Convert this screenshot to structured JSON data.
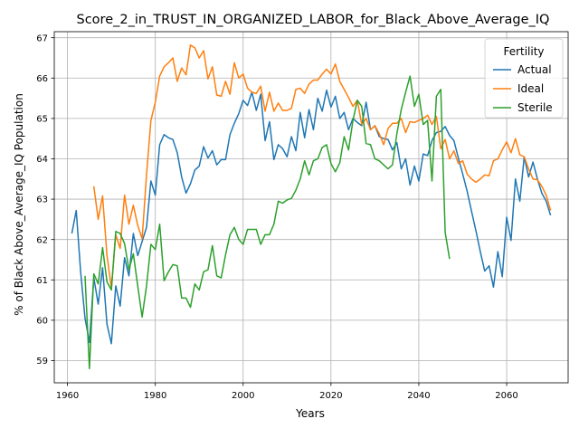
{
  "chart_data": {
    "type": "line",
    "title": "Score_2_in_TRUST_IN_ORGANIZED_LABOR_for_Black_Above_Average_IQ",
    "xlabel": "Years",
    "ylabel": "% of Black Above_Average_IQ Population",
    "xlim": [
      1957,
      2074
    ],
    "ylim": [
      58.45,
      67.15
    ],
    "xticks": [
      1960,
      1980,
      2000,
      2020,
      2040,
      2060
    ],
    "yticks": [
      59,
      60,
      61,
      62,
      63,
      64,
      65,
      66,
      67
    ],
    "grid": true,
    "legend": {
      "title": "Fertility",
      "position": "top-right"
    },
    "series": [
      {
        "name": "Actual",
        "color": "#1f77b4",
        "x": [
          1961,
          1962,
          1963,
          1964,
          1965,
          1966,
          1967,
          1968,
          1969,
          1970,
          1971,
          1972,
          1973,
          1974,
          1975,
          1976,
          1977,
          1978,
          1979,
          1980,
          1981,
          1982,
          1983,
          1984,
          1985,
          1986,
          1987,
          1988,
          1989,
          1990,
          1991,
          1992,
          1993,
          1994,
          1995,
          1996,
          1997,
          1998,
          1999,
          2000,
          2001,
          2002,
          2003,
          2004,
          2005,
          2006,
          2007,
          2008,
          2009,
          2010,
          2011,
          2012,
          2013,
          2014,
          2015,
          2016,
          2017,
          2018,
          2019,
          2020,
          2021,
          2022,
          2023,
          2024,
          2025,
          2026,
          2027,
          2028,
          2029,
          2030,
          2031,
          2032,
          2033,
          2034,
          2035,
          2036,
          2037,
          2038,
          2039,
          2040,
          2041,
          2042,
          2043,
          2044,
          2045,
          2046,
          2047,
          2048,
          2049,
          2050,
          2051,
          2052,
          2053,
          2054,
          2055,
          2056,
          2057,
          2058,
          2059,
          2060,
          2061,
          2062,
          2063,
          2064,
          2065,
          2066,
          2067,
          2068,
          2069,
          2070
        ],
        "y": [
          62.15,
          62.72,
          61.2,
          60.05,
          59.45,
          61.05,
          60.4,
          61.3,
          59.9,
          59.42,
          60.85,
          60.35,
          61.55,
          61.1,
          62.15,
          61.6,
          61.95,
          62.3,
          63.45,
          63.1,
          64.35,
          64.6,
          64.52,
          64.48,
          64.15,
          63.55,
          63.15,
          63.38,
          63.72,
          63.82,
          64.3,
          64.02,
          64.2,
          63.85,
          63.98,
          63.98,
          64.6,
          64.88,
          65.12,
          65.45,
          65.32,
          65.65,
          65.2,
          65.6,
          64.45,
          64.92,
          63.98,
          64.35,
          64.25,
          64.05,
          64.55,
          64.2,
          65.15,
          64.52,
          65.22,
          64.72,
          65.5,
          65.18,
          65.7,
          65.28,
          65.55,
          65.0,
          65.15,
          64.72,
          65.0,
          64.9,
          64.82,
          65.4,
          64.72,
          64.82,
          64.55,
          64.5,
          64.48,
          64.22,
          64.4,
          63.75,
          64.0,
          63.35,
          63.82,
          63.45,
          64.12,
          64.08,
          64.45,
          64.65,
          64.68,
          64.8,
          64.58,
          64.45,
          64.02,
          63.62,
          63.2,
          62.7,
          62.22,
          61.7,
          61.22,
          61.35,
          60.82,
          61.7,
          61.08,
          62.55,
          61.98,
          63.5,
          62.95,
          64.05,
          63.55,
          63.92,
          63.5,
          63.15,
          62.95,
          62.6
        ]
      },
      {
        "name": "Ideal",
        "color": "#ff7f0e",
        "x": [
          1966,
          1967,
          1968,
          1969,
          1970,
          1971,
          1972,
          1973,
          1974,
          1975,
          1976,
          1977,
          1978,
          1979,
          1980,
          1981,
          1982,
          1983,
          1984,
          1985,
          1986,
          1987,
          1988,
          1989,
          1990,
          1991,
          1992,
          1993,
          1994,
          1995,
          1996,
          1997,
          1998,
          1999,
          2000,
          2001,
          2002,
          2003,
          2004,
          2005,
          2006,
          2007,
          2008,
          2009,
          2010,
          2011,
          2012,
          2013,
          2014,
          2015,
          2016,
          2017,
          2018,
          2019,
          2020,
          2021,
          2022,
          2023,
          2024,
          2025,
          2026,
          2027,
          2028,
          2029,
          2030,
          2031,
          2032,
          2033,
          2034,
          2035,
          2036,
          2037,
          2038,
          2039,
          2040,
          2041,
          2042,
          2043,
          2044,
          2045,
          2046,
          2047,
          2048,
          2049,
          2050,
          2051,
          2052,
          2053,
          2054,
          2055,
          2056,
          2057,
          2058,
          2059,
          2060,
          2061,
          2062,
          2063,
          2064,
          2065,
          2066,
          2067,
          2068,
          2069,
          2070
        ],
        "y": [
          63.32,
          62.5,
          63.08,
          61.6,
          60.8,
          62.12,
          61.78,
          63.1,
          62.38,
          62.85,
          62.35,
          62.02,
          63.6,
          64.95,
          65.4,
          66.05,
          66.28,
          66.38,
          66.5,
          65.92,
          66.25,
          66.08,
          66.82,
          66.75,
          66.5,
          66.68,
          65.98,
          66.28,
          65.58,
          65.55,
          65.92,
          65.6,
          66.38,
          66.0,
          66.1,
          65.75,
          65.65,
          65.62,
          65.8,
          65.18,
          65.65,
          65.18,
          65.38,
          65.2,
          65.2,
          65.25,
          65.72,
          65.75,
          65.62,
          65.85,
          65.95,
          65.95,
          66.1,
          66.22,
          66.1,
          66.35,
          65.92,
          65.72,
          65.52,
          65.3,
          65.45,
          64.85,
          65.0,
          64.72,
          64.82,
          64.62,
          64.35,
          64.75,
          64.88,
          64.88,
          65.0,
          64.65,
          64.92,
          64.9,
          64.95,
          65.0,
          65.08,
          64.85,
          65.05,
          64.25,
          64.48,
          64.0,
          64.2,
          63.88,
          63.95,
          63.62,
          63.5,
          63.42,
          63.5,
          63.6,
          63.58,
          63.95,
          64.0,
          64.22,
          64.42,
          64.15,
          64.5,
          64.1,
          64.05,
          63.75,
          63.5,
          63.48,
          63.32,
          63.1,
          62.72
        ]
      },
      {
        "name": "Sterile",
        "color": "#2ca02c",
        "x": [
          1964,
          1965,
          1966,
          1967,
          1968,
          1969,
          1970,
          1971,
          1972,
          1973,
          1974,
          1975,
          1976,
          1977,
          1978,
          1979,
          1980,
          1981,
          1982,
          1983,
          1984,
          1985,
          1986,
          1987,
          1988,
          1989,
          1990,
          1991,
          1992,
          1993,
          1994,
          1995,
          1996,
          1997,
          1998,
          1999,
          2000,
          2001,
          2002,
          2003,
          2004,
          2005,
          2006,
          2007,
          2008,
          2009,
          2010,
          2011,
          2012,
          2013,
          2014,
          2015,
          2016,
          2017,
          2018,
          2019,
          2020,
          2021,
          2022,
          2023,
          2024,
          2025,
          2026,
          2027,
          2028,
          2029,
          2030,
          2031,
          2032,
          2033,
          2034,
          2035,
          2036,
          2037,
          2038,
          2039,
          2040,
          2041,
          2042,
          2043,
          2044,
          2045,
          2046,
          2047
        ],
        "y": [
          61.1,
          58.8,
          61.15,
          60.9,
          61.8,
          60.95,
          60.75,
          62.2,
          62.15,
          61.9,
          61.25,
          61.65,
          60.85,
          60.08,
          60.85,
          61.88,
          61.75,
          62.38,
          60.98,
          61.2,
          61.38,
          61.35,
          60.55,
          60.55,
          60.32,
          60.9,
          60.75,
          61.2,
          61.25,
          61.85,
          61.1,
          61.05,
          61.62,
          62.12,
          62.3,
          62.0,
          61.88,
          62.25,
          62.25,
          62.25,
          61.88,
          62.12,
          62.12,
          62.38,
          62.95,
          62.9,
          62.98,
          63.02,
          63.22,
          63.5,
          63.95,
          63.6,
          63.95,
          64.0,
          64.28,
          64.35,
          63.88,
          63.68,
          63.9,
          64.55,
          64.22,
          64.95,
          65.45,
          65.3,
          64.38,
          64.35,
          64.0,
          63.95,
          63.85,
          63.75,
          63.85,
          64.62,
          65.22,
          65.65,
          66.05,
          65.3,
          65.6,
          64.85,
          64.95,
          63.45,
          65.55,
          65.72,
          62.18,
          61.52
        ]
      }
    ]
  }
}
